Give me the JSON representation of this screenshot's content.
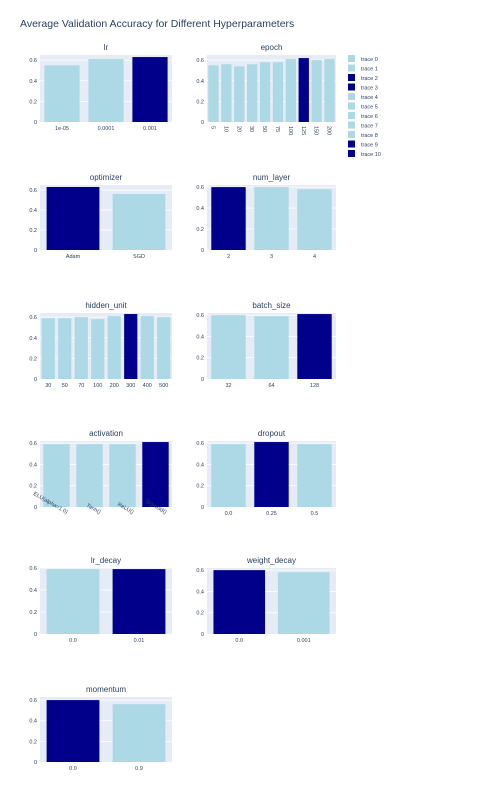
{
  "title": "Average Validation Accuracy for Different Hyperparameters",
  "colors": {
    "highlight": "#00008b",
    "normal": "#add8e6",
    "plot_bg": "#e5ecf6",
    "grid": "#ffffff"
  },
  "legend": [
    {
      "label": "trace 0",
      "color": "#add8e6"
    },
    {
      "label": "trace 1",
      "color": "#add8e6"
    },
    {
      "label": "trace 2",
      "color": "#00008b"
    },
    {
      "label": "trace 3",
      "color": "#00008b"
    },
    {
      "label": "trace 4",
      "color": "#add8e6"
    },
    {
      "label": "trace 5",
      "color": "#add8e6"
    },
    {
      "label": "trace 6",
      "color": "#add8e6"
    },
    {
      "label": "trace 7",
      "color": "#add8e6"
    },
    {
      "label": "trace 8",
      "color": "#add8e6"
    },
    {
      "label": "trace 9",
      "color": "#00008b"
    },
    {
      "label": "trace 10",
      "color": "#00008b"
    }
  ],
  "chart_data": [
    {
      "type": "bar",
      "title": "lr",
      "categories": [
        "1e-05",
        "0.0001",
        "0.001"
      ],
      "values": [
        0.55,
        0.61,
        0.63
      ],
      "highlight": [
        false,
        false,
        true
      ],
      "ylim": [
        0,
        0.65
      ],
      "yticks": [
        "0",
        "0.2",
        "0.4",
        "0.6"
      ],
      "rotate": false
    },
    {
      "type": "bar",
      "title": "epoch",
      "categories": [
        "5",
        "10",
        "20",
        "30",
        "50",
        "75",
        "100",
        "125",
        "150",
        "200"
      ],
      "values": [
        0.55,
        0.56,
        0.54,
        0.56,
        0.58,
        0.58,
        0.61,
        0.62,
        0.6,
        0.61
      ],
      "highlight": [
        false,
        false,
        false,
        false,
        false,
        false,
        false,
        true,
        false,
        false
      ],
      "ylim": [
        0,
        0.65
      ],
      "yticks": [
        "0",
        "0.2",
        "0.4",
        "0.6"
      ],
      "rotate": "vertical"
    },
    {
      "type": "bar",
      "title": "optimizer",
      "categories": [
        "Adam",
        "SGD"
      ],
      "values": [
        0.63,
        0.56
      ],
      "highlight": [
        true,
        false
      ],
      "ylim": [
        0,
        0.65
      ],
      "yticks": [
        "0",
        "0.2",
        "0.4",
        "0.6"
      ],
      "rotate": false
    },
    {
      "type": "bar",
      "title": "num_layer",
      "categories": [
        "2",
        "3",
        "4"
      ],
      "values": [
        0.6,
        0.6,
        0.58
      ],
      "highlight": [
        true,
        false,
        false
      ],
      "ylim": [
        0,
        0.62
      ],
      "yticks": [
        "0",
        "0.2",
        "0.4",
        "0.6"
      ],
      "rotate": false
    },
    {
      "type": "bar",
      "title": "hidden_unit",
      "categories": [
        "30",
        "50",
        "70",
        "100",
        "200",
        "300",
        "400",
        "500"
      ],
      "values": [
        0.59,
        0.59,
        0.6,
        0.58,
        0.61,
        0.63,
        0.61,
        0.6
      ],
      "highlight": [
        false,
        false,
        false,
        false,
        false,
        true,
        false,
        false
      ],
      "ylim": [
        0,
        0.64
      ],
      "yticks": [
        "0",
        "0.2",
        "0.4",
        "0.6"
      ],
      "rotate": false
    },
    {
      "type": "bar",
      "title": "batch_size",
      "categories": [
        "32",
        "64",
        "128"
      ],
      "values": [
        0.6,
        0.59,
        0.61
      ],
      "highlight": [
        false,
        false,
        true
      ],
      "ylim": [
        0,
        0.62
      ],
      "yticks": [
        "0",
        "0.2",
        "0.4",
        "0.6"
      ],
      "rotate": false
    },
    {
      "type": "bar",
      "title": "activation",
      "categories": [
        "ELU(alpha=1.0)",
        "Tanh()",
        "ReLU()",
        "Sigmoid()"
      ],
      "values": [
        0.59,
        0.59,
        0.59,
        0.61
      ],
      "highlight": [
        false,
        false,
        false,
        true
      ],
      "ylim": [
        0,
        0.62
      ],
      "yticks": [
        "0",
        "0.2",
        "0.4",
        "0.6"
      ],
      "rotate": "slant"
    },
    {
      "type": "bar",
      "title": "dropout",
      "categories": [
        "0.0",
        "0.25",
        "0.5"
      ],
      "values": [
        0.59,
        0.61,
        0.59
      ],
      "highlight": [
        false,
        true,
        false
      ],
      "ylim": [
        0,
        0.62
      ],
      "yticks": [
        "0",
        "0.2",
        "0.4",
        "0.6"
      ],
      "rotate": false
    },
    {
      "type": "bar",
      "title": "lr_decay",
      "categories": [
        "0.0",
        "0.01"
      ],
      "values": [
        0.59,
        0.59
      ],
      "highlight": [
        false,
        true
      ],
      "ylim": [
        0,
        0.6
      ],
      "yticks": [
        "0",
        "0.2",
        "0.4",
        "0.6"
      ],
      "rotate": false
    },
    {
      "type": "bar",
      "title": "weight_decay",
      "categories": [
        "0.0",
        "0.001"
      ],
      "values": [
        0.6,
        0.58
      ],
      "highlight": [
        true,
        false
      ],
      "ylim": [
        0,
        0.62
      ],
      "yticks": [
        "0",
        "0.2",
        "0.4",
        "0.6"
      ],
      "rotate": false
    },
    {
      "type": "bar",
      "title": "momentum",
      "categories": [
        "0.0",
        "0.9"
      ],
      "values": [
        0.6,
        0.56
      ],
      "highlight": [
        true,
        false
      ],
      "ylim": [
        0,
        0.63
      ],
      "yticks": [
        "0",
        "0.2",
        "0.4",
        "0.6"
      ],
      "rotate": false
    }
  ]
}
